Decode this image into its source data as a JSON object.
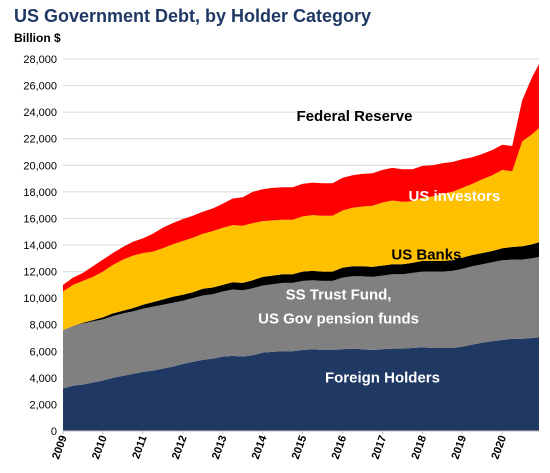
{
  "chart_data": {
    "type": "area",
    "stacked": true,
    "title": "US Government Debt, by Holder Category",
    "ylabel": "Billion $",
    "xlabel": "",
    "ylim": [
      0,
      28000
    ],
    "yticks": [
      0,
      2000,
      4000,
      6000,
      8000,
      10000,
      12000,
      14000,
      16000,
      18000,
      20000,
      22000,
      24000,
      26000,
      28000
    ],
    "ytick_labels": [
      "0",
      "2,000",
      "4,000",
      "6,000",
      "8,000",
      "10,000",
      "12,000",
      "14,000",
      "16,000",
      "18,000",
      "20,000",
      "22,000",
      "24,000",
      "26,000",
      "28,000"
    ],
    "xlim": [
      2009.0,
      2020.92
    ],
    "xticks": [
      2009,
      2010,
      2011,
      2012,
      2013,
      2014,
      2015,
      2016,
      2017,
      2018,
      2019,
      2020
    ],
    "xtick_labels": [
      "2009",
      "2010",
      "2011",
      "2012",
      "2013",
      "2014",
      "2015",
      "2016",
      "2017",
      "2018",
      "2019",
      "2020"
    ],
    "grid": "horizontal",
    "x": [
      2009.0,
      2009.25,
      2009.5,
      2009.75,
      2010.0,
      2010.25,
      2010.5,
      2010.75,
      2011.0,
      2011.25,
      2011.5,
      2011.75,
      2012.0,
      2012.25,
      2012.5,
      2012.75,
      2013.0,
      2013.25,
      2013.5,
      2013.75,
      2014.0,
      2014.25,
      2014.5,
      2014.75,
      2015.0,
      2015.25,
      2015.5,
      2015.75,
      2016.0,
      2016.25,
      2016.5,
      2016.75,
      2017.0,
      2017.25,
      2017.5,
      2017.75,
      2018.0,
      2018.25,
      2018.5,
      2018.75,
      2019.0,
      2019.25,
      2019.5,
      2019.75,
      2020.0,
      2020.25,
      2020.5,
      2020.75,
      2020.92
    ],
    "series": [
      {
        "name": "Foreign Holders",
        "color": "#1f3864",
        "label_color": "#ffffff",
        "values": [
          3200,
          3400,
          3500,
          3650,
          3800,
          4000,
          4150,
          4300,
          4450,
          4550,
          4700,
          4850,
          5050,
          5200,
          5350,
          5450,
          5600,
          5650,
          5600,
          5700,
          5900,
          5950,
          6000,
          6000,
          6100,
          6150,
          6100,
          6100,
          6150,
          6200,
          6150,
          6100,
          6150,
          6200,
          6200,
          6250,
          6300,
          6250,
          6250,
          6250,
          6350,
          6500,
          6650,
          6750,
          6850,
          6950,
          6950,
          7000,
          7050
        ]
      },
      {
        "name": "SS Trust Fund, US Gov pension funds",
        "color": "#808080",
        "label_color": "#ffffff",
        "values": [
          4400,
          4500,
          4600,
          4600,
          4600,
          4650,
          4700,
          4700,
          4750,
          4800,
          4800,
          4800,
          4750,
          4800,
          4850,
          4850,
          4900,
          5000,
          5000,
          5050,
          5050,
          5100,
          5150,
          5150,
          5200,
          5200,
          5200,
          5200,
          5400,
          5450,
          5500,
          5500,
          5550,
          5600,
          5600,
          5650,
          5700,
          5750,
          5750,
          5800,
          5850,
          5900,
          5900,
          5950,
          6000,
          5950,
          5950,
          6000,
          6050
        ]
      },
      {
        "name": "US Banks",
        "color": "#000000",
        "label_color": "#000000",
        "values": [
          0,
          0,
          50,
          100,
          150,
          200,
          200,
          250,
          300,
          350,
          400,
          450,
          450,
          450,
          500,
          500,
          500,
          550,
          550,
          600,
          650,
          650,
          650,
          650,
          700,
          700,
          700,
          700,
          750,
          750,
          750,
          750,
          750,
          750,
          750,
          750,
          800,
          800,
          800,
          800,
          850,
          850,
          850,
          850,
          900,
          950,
          1000,
          1050,
          1100
        ]
      },
      {
        "name": "US investors",
        "color": "#ffc000",
        "label_color": "#ffffff",
        "values": [
          2900,
          3100,
          3150,
          3250,
          3450,
          3650,
          3850,
          3950,
          3900,
          3800,
          3850,
          3950,
          4050,
          4100,
          4150,
          4250,
          4300,
          4300,
          4300,
          4300,
          4200,
          4150,
          4100,
          4100,
          4150,
          4200,
          4200,
          4200,
          4300,
          4400,
          4500,
          4600,
          4750,
          4800,
          4700,
          4650,
          4750,
          4850,
          5050,
          5150,
          5250,
          5350,
          5550,
          5700,
          5900,
          5700,
          7900,
          8300,
          8600
        ]
      },
      {
        "name": "Federal Reserve",
        "color": "#ff0000",
        "label_color": "#000000",
        "values": [
          500,
          550,
          600,
          800,
          900,
          900,
          950,
          1050,
          1100,
          1350,
          1550,
          1600,
          1650,
          1650,
          1650,
          1700,
          1800,
          2000,
          2150,
          2350,
          2400,
          2450,
          2450,
          2450,
          2450,
          2450,
          2450,
          2450,
          2450,
          2450,
          2450,
          2450,
          2450,
          2450,
          2450,
          2400,
          2400,
          2350,
          2300,
          2250,
          2150,
          2000,
          1900,
          1900,
          1900,
          1900,
          3100,
          4300,
          4800
        ]
      }
    ],
    "annotations": [
      {
        "text": "Federal Reserve",
        "series": "Federal Reserve",
        "x": 2016.3,
        "y": 23350
      },
      {
        "text": "US investors",
        "series": "US investors",
        "x": 2018.8,
        "y": 17300
      },
      {
        "text": "US Banks",
        "series": "US Banks",
        "x": 2018.1,
        "y": 12900
      },
      {
        "text": "SS Trust Fund,",
        "series": "SS Trust Fund, US Gov pension funds",
        "x": 2015.9,
        "y": 9900
      },
      {
        "text": "US Gov pension funds",
        "series": "SS Trust Fund, US Gov pension funds",
        "x": 2015.9,
        "y": 8100
      },
      {
        "text": "Foreign Holders",
        "series": "Foreign Holders",
        "x": 2017.0,
        "y": 3650
      }
    ]
  }
}
